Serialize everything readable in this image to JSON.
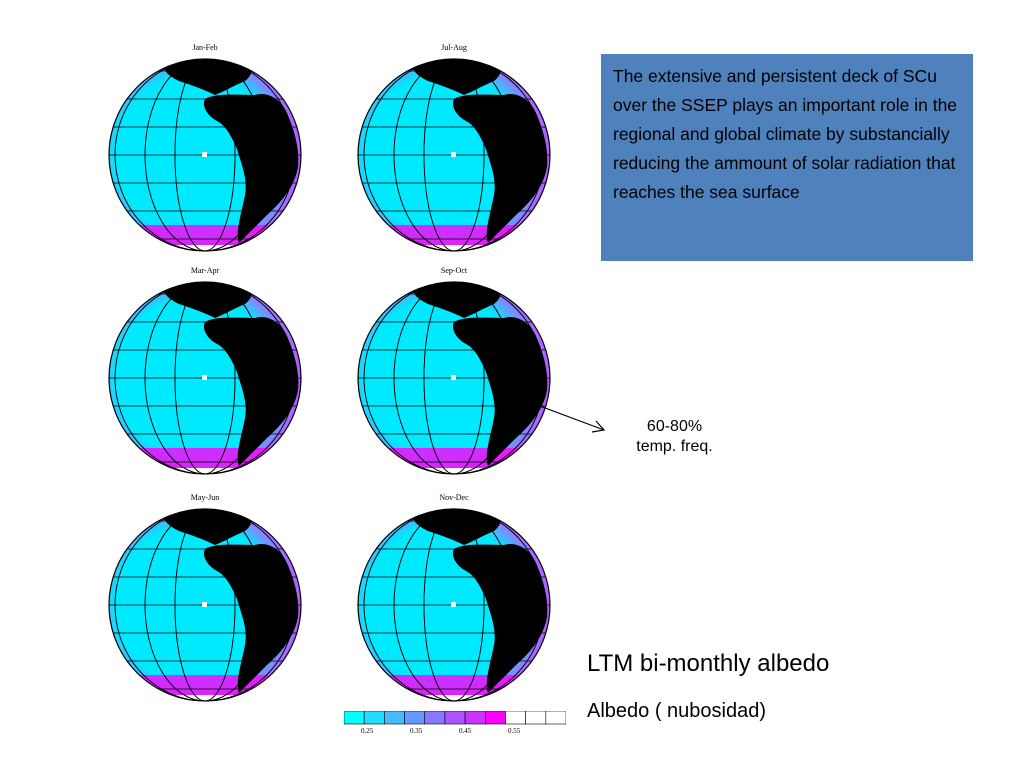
{
  "panels": [
    {
      "title": "Jan-Feb"
    },
    {
      "title": "Jul-Aug"
    },
    {
      "title": "Mar-Apr"
    },
    {
      "title": "Sep-Oct"
    },
    {
      "title": "May-Jun"
    },
    {
      "title": "Nov-Dec"
    }
  ],
  "callout": {
    "text": "The extensive and persistent deck of SCu over the SSEP plays an important role in the regional and global climate by substancially reducing the ammount of solar radiation that reaches the sea surface"
  },
  "annotation": {
    "line1": "60-80%",
    "line2": "temp. freq."
  },
  "heading": "LTM bi-monthly albedo",
  "subheading": "Albedo ( nubosidad)",
  "colorbar": {
    "colors": [
      "#00ffff",
      "#22ddff",
      "#44bbff",
      "#6699ff",
      "#8877ff",
      "#aa55ff",
      "#cc33ff",
      "#ff00ff",
      "#ffffff",
      "#ffffff",
      "#ffffff"
    ],
    "labels": [
      "0.25",
      "0.35",
      "0.45",
      "0.55"
    ]
  },
  "colors": {
    "ocean_low": "#00eaff",
    "ocean_mid": "#a070ff",
    "ocean_high": "#ff00ff",
    "land": "#000000",
    "callout_bg": "#4f81bd"
  }
}
